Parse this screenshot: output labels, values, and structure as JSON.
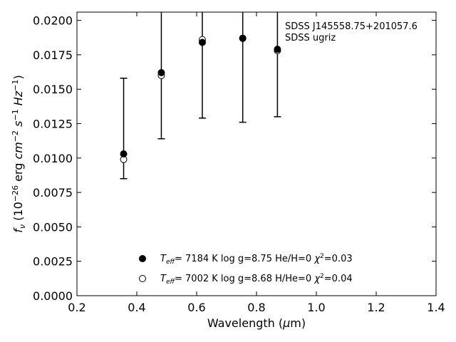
{
  "chart_data": {
    "type": "scatter",
    "xlabel": "Wavelength (μm)",
    "ylabel": "f_ν (10^-26 erg cm^-2 s^-1 Hz^-1)",
    "xlim": [
      0.2,
      1.4
    ],
    "ylim": [
      0.0,
      0.0206
    ],
    "xticks": [
      "0.2",
      "0.4",
      "0.6",
      "0.8",
      "1.0",
      "1.2",
      "1.4"
    ],
    "yticks": [
      "0.0000",
      "0.0025",
      "0.0050",
      "0.0075",
      "0.0100",
      "0.0125",
      "0.0150",
      "0.0175",
      "0.0200"
    ],
    "annotation_lines": [
      "SDSS J145558.75+201057.6",
      "SDSS ugriz"
    ],
    "observed": [
      {
        "x": 0.356,
        "y": 0.0103,
        "err_low": 0.0085,
        "err_high": 0.0158
      },
      {
        "x": 0.482,
        "y": 0.0162,
        "err_low": 0.0114,
        "err_high": 0.0206
      },
      {
        "x": 0.619,
        "y": 0.0184,
        "err_low": 0.0129,
        "err_high": 0.0206
      },
      {
        "x": 0.754,
        "y": 0.0187,
        "err_low": 0.0126,
        "err_high": 0.0206
      },
      {
        "x": 0.87,
        "y": 0.0179,
        "err_low": 0.013,
        "err_high": 0.0206
      }
    ],
    "series": [
      {
        "marker": "filled-circle",
        "x": [
          0.356,
          0.482,
          0.619,
          0.754,
          0.87
        ],
        "values": [
          0.0103,
          0.0162,
          0.0184,
          0.0187,
          0.0179
        ],
        "legend": {
          "teff": "7184 K",
          "logg": "log g=8.75",
          "comp": "He/H=0",
          "chi2": "=0.03"
        }
      },
      {
        "marker": "open-circle",
        "x": [
          0.356,
          0.482,
          0.619,
          0.754,
          0.87
        ],
        "values": [
          0.0099,
          0.016,
          0.0186,
          0.0187,
          0.0178
        ],
        "legend": {
          "teff": "7002 K",
          "logg": "log g=8.68",
          "comp": "H/He=0",
          "chi2": "=0.04"
        }
      }
    ],
    "legend_position": "lower-center",
    "grid": false,
    "colors": {
      "marker": "#000000",
      "open_fill": "#ffffff",
      "background": "#ffffff"
    }
  }
}
